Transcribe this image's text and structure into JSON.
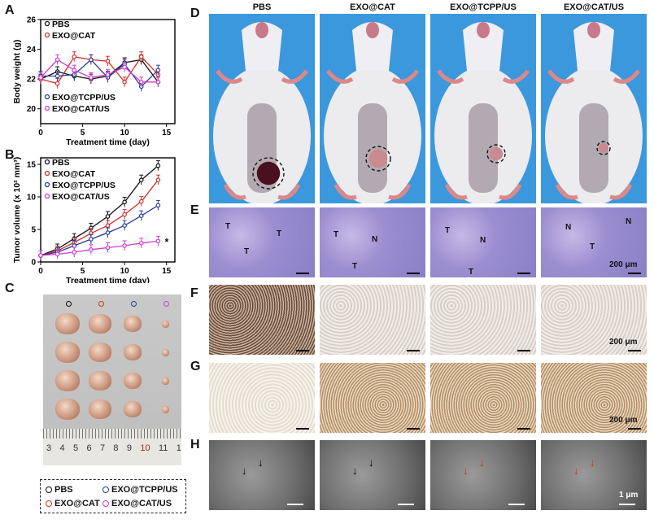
{
  "panels": {
    "A": "A",
    "B": "B",
    "C": "C",
    "D": "D",
    "E": "E",
    "F": "F",
    "G": "G",
    "H": "H"
  },
  "groups": [
    {
      "name": "PBS",
      "color": "#111111"
    },
    {
      "name": "EXO@CAT",
      "color": "#d0302a"
    },
    {
      "name": "EXO@TCPP/US",
      "color": "#2a3a9a"
    },
    {
      "name": "EXO@CAT/US",
      "color": "#d23ad2"
    }
  ],
  "chart_data": [
    {
      "type": "line",
      "xlabel": "Treatment time (day)",
      "ylabel": "Body weight (g)",
      "xlim": [
        0,
        16
      ],
      "ylim": [
        19,
        26
      ],
      "xticks": [
        0,
        5,
        10,
        15
      ],
      "yticks": [
        20,
        22,
        24,
        26
      ],
      "x": [
        0,
        2,
        4,
        6,
        8,
        10,
        12,
        14
      ],
      "series": [
        {
          "name": "PBS",
          "values": [
            22.0,
            22.5,
            22.2,
            22.0,
            22.2,
            23.1,
            23.3,
            21.8
          ]
        },
        {
          "name": "EXO@CAT",
          "values": [
            22.0,
            21.7,
            23.5,
            23.3,
            23.2,
            21.8,
            23.5,
            22.3
          ]
        },
        {
          "name": "EXO@TCPP/US",
          "values": [
            22.2,
            22.2,
            22.3,
            23.3,
            22.1,
            23.0,
            21.5,
            22.6
          ]
        },
        {
          "name": "EXO@CAT/US",
          "values": [
            22.1,
            23.3,
            22.6,
            22.1,
            22.3,
            22.8,
            21.8,
            21.8
          ]
        }
      ]
    },
    {
      "type": "line",
      "xlabel": "Treatment time (day)",
      "ylabel": "Tumor volume (x 10² mm³)",
      "xlim": [
        0,
        16
      ],
      "ylim": [
        0,
        16
      ],
      "xticks": [
        0,
        5,
        10,
        15
      ],
      "yticks": [
        0,
        5,
        10,
        15
      ],
      "x": [
        0,
        2,
        4,
        6,
        8,
        10,
        12,
        14
      ],
      "annotation": "*",
      "series": [
        {
          "name": "PBS",
          "values": [
            1.0,
            2.0,
            3.6,
            5.2,
            7.0,
            9.2,
            12.6,
            14.8
          ]
        },
        {
          "name": "EXO@CAT",
          "values": [
            1.0,
            1.7,
            3.0,
            4.4,
            5.6,
            7.3,
            9.3,
            12.6
          ]
        },
        {
          "name": "EXO@TCPP/US",
          "values": [
            1.0,
            1.5,
            2.5,
            3.5,
            4.5,
            5.6,
            7.1,
            8.7
          ]
        },
        {
          "name": "EXO@CAT/US",
          "values": [
            1.0,
            1.2,
            1.5,
            1.9,
            2.2,
            2.5,
            2.9,
            3.2
          ]
        }
      ]
    }
  ],
  "panelD": {
    "columns": [
      "PBS",
      "EXO@CAT",
      "EXO@TCPP/US",
      "EXO@CAT/US"
    ]
  },
  "panelE": {
    "labels": [
      [
        "T",
        "T",
        "T"
      ],
      [
        "T",
        "N",
        "T"
      ],
      [
        "T",
        "N",
        "T"
      ],
      [
        "N",
        "T",
        "N"
      ]
    ],
    "scale": "200 μm"
  },
  "panelF": {
    "scale": "200 μm"
  },
  "panelG": {
    "scale": "200 μm"
  },
  "panelH": {
    "scale": "1 μm"
  },
  "ruler": {
    "numbers": [
      "3",
      "4",
      "5",
      "6",
      "7",
      "8",
      "9",
      "10",
      "11",
      "1"
    ]
  }
}
